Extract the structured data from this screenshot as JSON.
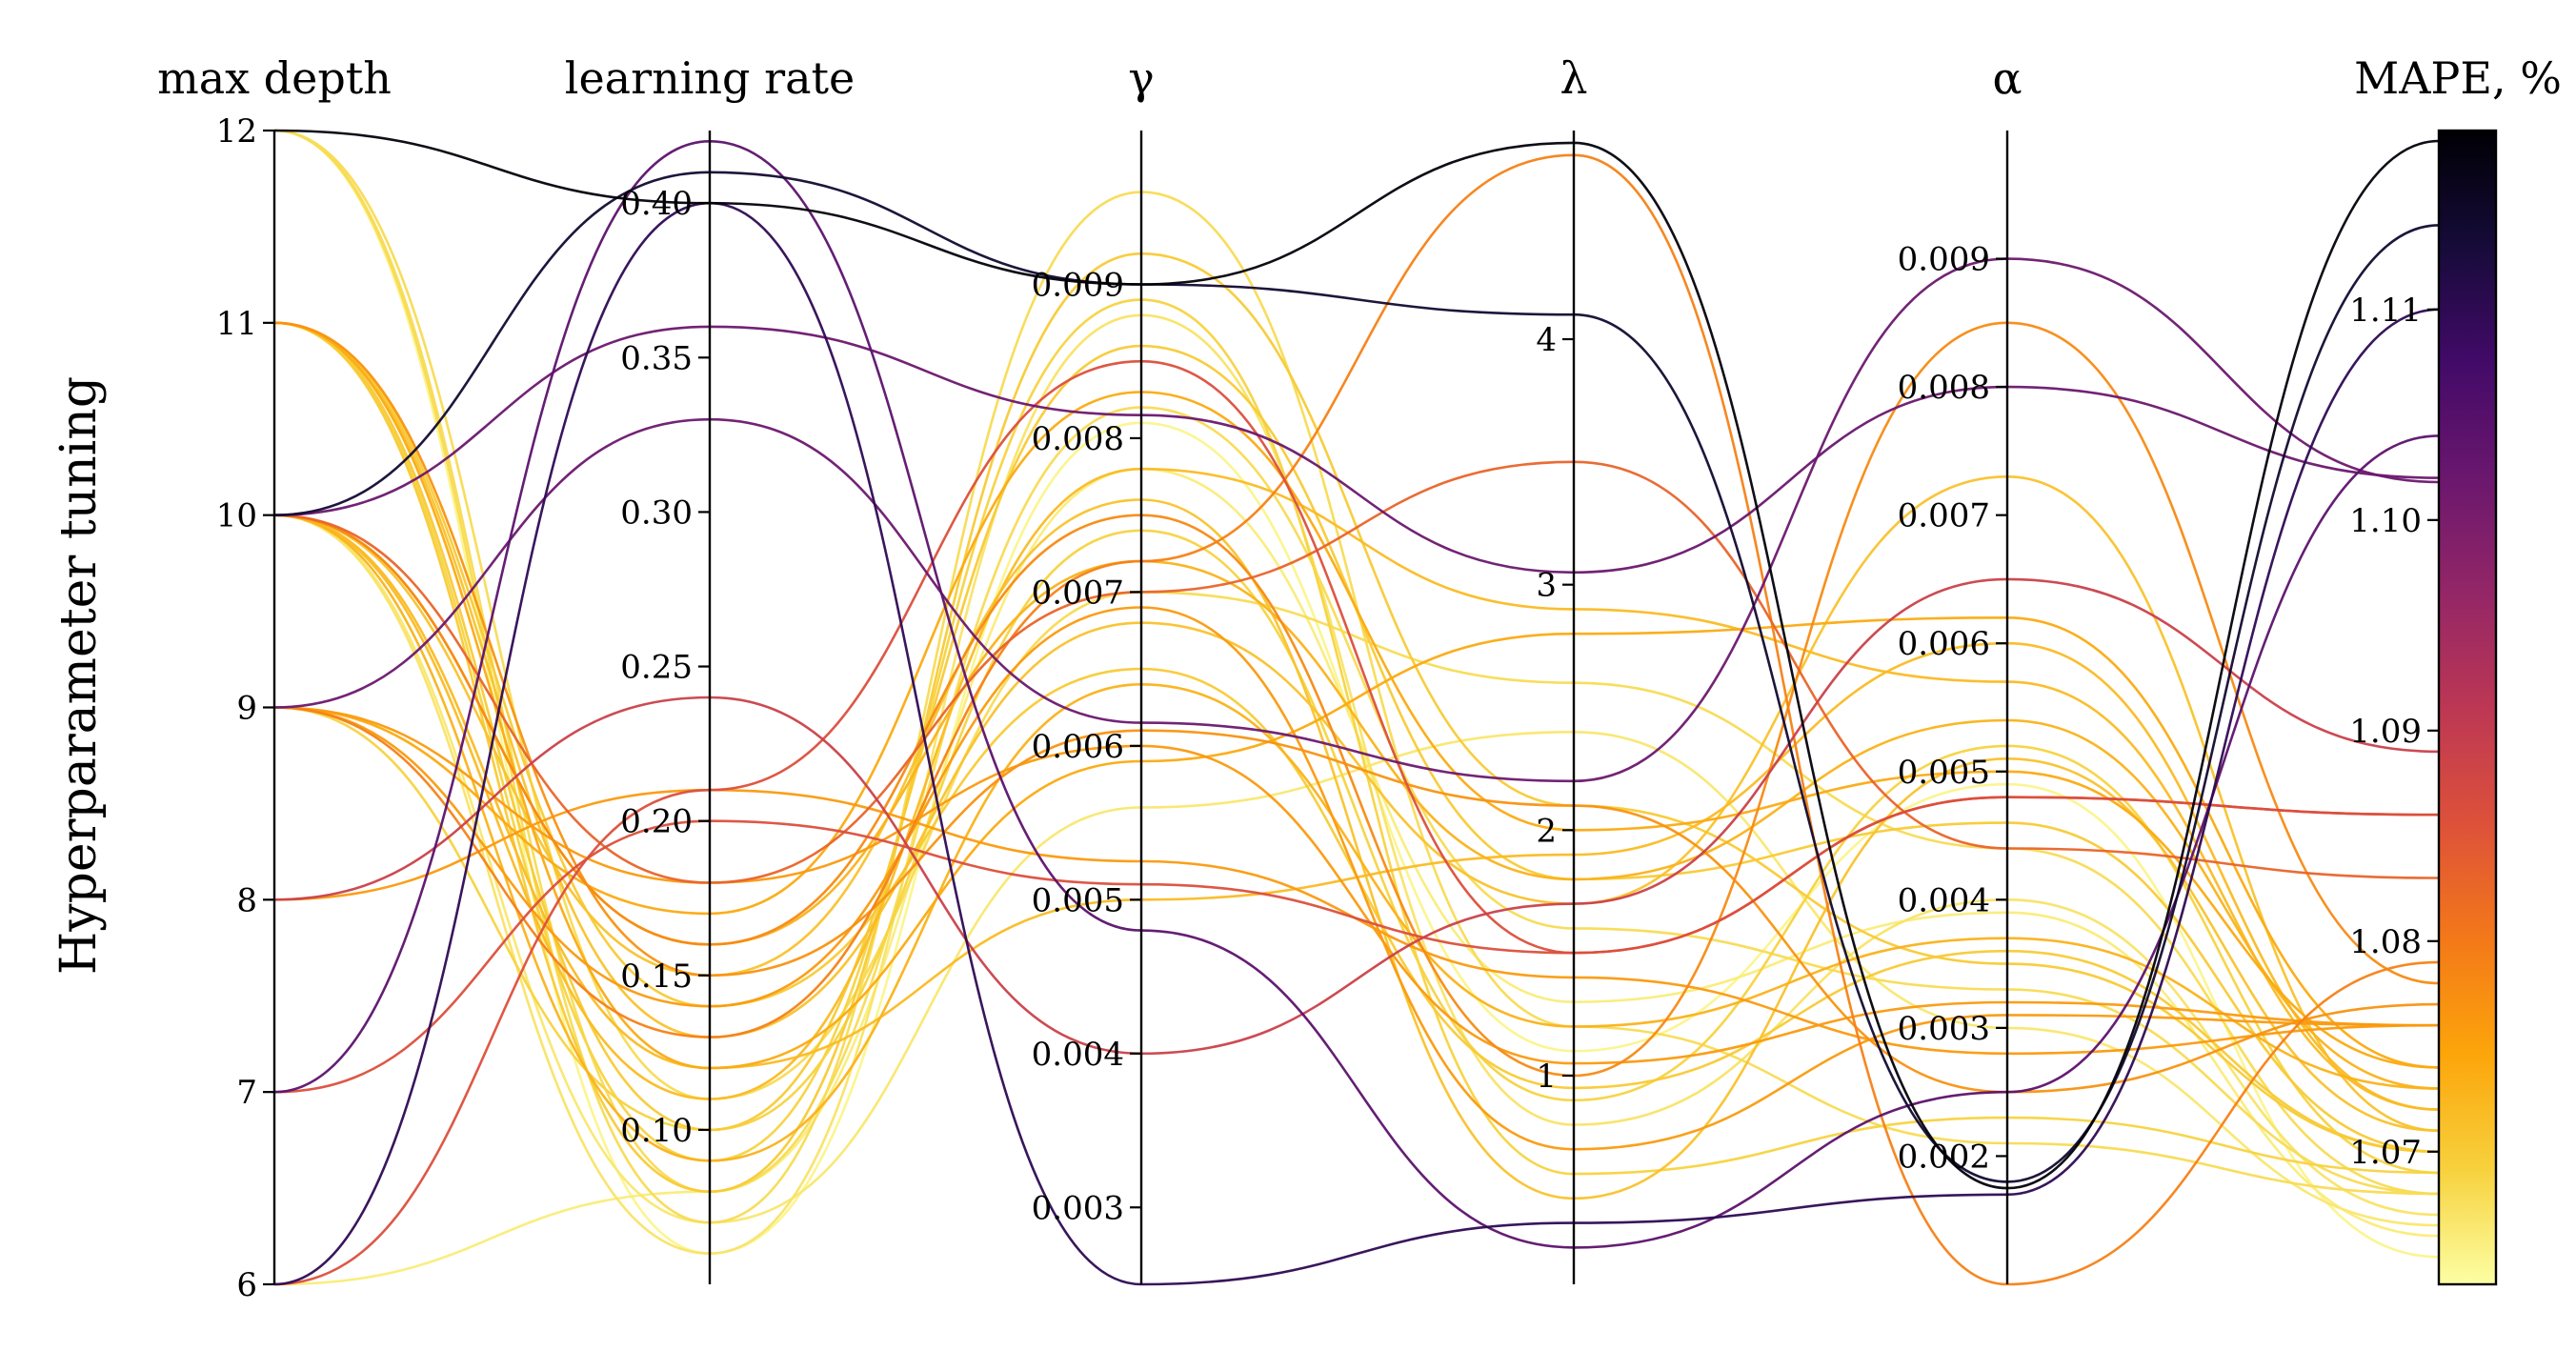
{
  "chart_data": {
    "type": "parallel_coordinates",
    "title": "",
    "ylabel": "Hyperparameter tuning",
    "axes": [
      {
        "key": "max_depth",
        "label": "max depth",
        "range": [
          6,
          12
        ],
        "ticks": [
          6,
          7,
          8,
          9,
          10,
          11,
          12
        ],
        "tick_labels": [
          "6",
          "7",
          "8",
          "9",
          "10",
          "11",
          "12"
        ],
        "tick_side": "left"
      },
      {
        "key": "learning_rate",
        "label": "learning rate",
        "range": [
          0.05,
          0.4235
        ],
        "ticks": [
          0.1,
          0.15,
          0.2,
          0.25,
          0.3,
          0.35,
          0.4
        ],
        "tick_labels": [
          "0.10",
          "0.15",
          "0.20",
          "0.25",
          "0.30",
          "0.35",
          "0.40"
        ],
        "tick_side": "left"
      },
      {
        "key": "gamma",
        "label": "γ",
        "range": [
          0.0025,
          0.01
        ],
        "ticks": [
          0.003,
          0.004,
          0.005,
          0.006,
          0.007,
          0.008,
          0.009
        ],
        "tick_labels": [
          "0.003",
          "0.004",
          "0.005",
          "0.006",
          "0.007",
          "0.008",
          "0.009"
        ],
        "tick_side": "left"
      },
      {
        "key": "lambda",
        "label": "λ",
        "range": [
          0.15,
          4.85
        ],
        "ticks": [
          1,
          2,
          3,
          4
        ],
        "tick_labels": [
          "1",
          "2",
          "3",
          "4"
        ],
        "tick_side": "left"
      },
      {
        "key": "alpha",
        "label": "α",
        "range": [
          0.001,
          0.01
        ],
        "ticks": [
          0.002,
          0.003,
          0.004,
          0.005,
          0.006,
          0.007,
          0.008,
          0.009
        ],
        "tick_labels": [
          "0.002",
          "0.003",
          "0.004",
          "0.005",
          "0.006",
          "0.007",
          "0.008",
          "0.009"
        ],
        "tick_side": "left"
      },
      {
        "key": "mape",
        "label": "MAPE, %",
        "range": [
          1.0637,
          1.1185
        ],
        "ticks": [
          1.07,
          1.08,
          1.09,
          1.1,
          1.11
        ],
        "tick_labels": [
          "1.07",
          "1.08",
          "1.09",
          "1.10",
          "1.11"
        ],
        "tick_side": "left",
        "colorbar": true
      }
    ],
    "colormap": "inferno_r",
    "colormap_stops": [
      "#fcffa4",
      "#f7d13d",
      "#fca50a",
      "#f37819",
      "#dd513a",
      "#bc3754",
      "#932667",
      "#6a176e",
      "#420a68",
      "#160b39",
      "#000004"
    ],
    "series": [
      {
        "values": [
          12,
          0.4,
          0.009,
          4.8,
          0.00175,
          1.118
        ]
      },
      {
        "values": [
          10,
          0.41,
          0.009,
          4.1,
          0.0018,
          1.114
        ]
      },
      {
        "values": [
          6,
          0.4,
          0.0025,
          0.4,
          0.0017,
          1.11
        ]
      },
      {
        "values": [
          10,
          0.36,
          0.00815,
          3.05,
          0.008,
          1.102
        ]
      },
      {
        "values": [
          9,
          0.33,
          0.00615,
          2.2,
          0.009,
          1.1018
        ]
      },
      {
        "values": [
          7,
          0.42,
          0.0048,
          0.3,
          0.0025,
          1.104
        ]
      },
      {
        "values": [
          8,
          0.24,
          0.004,
          1.7,
          0.0065,
          1.089
        ]
      },
      {
        "values": [
          7,
          0.2,
          0.0051,
          1.5,
          0.0048,
          1.086
        ]
      },
      {
        "values": [
          6,
          0.21,
          0.0085,
          1.5,
          0.0048,
          1.086
        ]
      },
      {
        "values": [
          10,
          0.18,
          0.007,
          3.5,
          0.0044,
          1.083
        ]
      },
      {
        "values": [
          11,
          0.15,
          0.0061,
          2.1,
          0.0025,
          1.077
        ]
      },
      {
        "values": [
          9,
          0.13,
          0.0072,
          4.75,
          0.001,
          1.079
        ]
      },
      {
        "values": [
          10,
          0.16,
          0.0075,
          1.0,
          0.0085,
          1.078
        ]
      },
      {
        "values": [
          11,
          0.12,
          0.0059,
          2.8,
          0.0062,
          1.074
        ]
      },
      {
        "values": [
          8,
          0.21,
          0.00525,
          1.4,
          0.0028,
          1.076
        ]
      },
      {
        "values": [
          9,
          0.14,
          0.0069,
          0.7,
          0.0031,
          1.076
        ]
      },
      {
        "values": [
          10,
          0.09,
          0.0064,
          1.2,
          0.0037,
          1.073
        ]
      },
      {
        "values": [
          10,
          0.11,
          0.0078,
          2.9,
          0.0057,
          1.072
        ]
      },
      {
        "values": [
          11,
          0.08,
          0.0092,
          2.1,
          0.0035,
          1.07
        ]
      },
      {
        "values": [
          12,
          0.07,
          0.0096,
          1.2,
          0.0021,
          1.068
        ]
      },
      {
        "values": [
          11,
          0.1,
          0.0086,
          1.8,
          0.0046,
          1.07
        ]
      },
      {
        "values": [
          10,
          0.06,
          0.0088,
          0.8,
          0.004,
          1.067
        ]
      },
      {
        "values": [
          12,
          0.08,
          0.0082,
          1.6,
          0.0033,
          1.068
        ]
      },
      {
        "values": [
          9,
          0.1,
          0.0074,
          0.9,
          0.0052,
          1.069
        ]
      },
      {
        "values": [
          11,
          0.13,
          0.0068,
          1.7,
          0.0073,
          1.071
        ]
      },
      {
        "values": [
          10,
          0.07,
          0.0056,
          2.4,
          0.003,
          1.0665
        ]
      },
      {
        "values": [
          6,
          0.08,
          0.0078,
          1.3,
          0.0039,
          1.066
        ]
      },
      {
        "values": [
          12,
          0.06,
          0.0081,
          1.1,
          0.0049,
          1.065
        ]
      },
      {
        "values": [
          10,
          0.12,
          0.005,
          1.9,
          0.006,
          1.072
        ]
      },
      {
        "values": [
          11,
          0.09,
          0.0089,
          0.6,
          0.0023,
          1.069
        ]
      },
      {
        "values": [
          9,
          0.17,
          0.0083,
          2.0,
          0.005,
          1.074
        ]
      },
      {
        "values": [
          10,
          0.15,
          0.0076,
          0.5,
          0.0051,
          1.071
        ]
      },
      {
        "values": [
          12,
          0.11,
          0.007,
          2.6,
          0.0044,
          1.068
        ]
      },
      {
        "values": [
          11,
          0.14,
          0.0065,
          0.95,
          0.0036,
          1.07
        ]
      },
      {
        "values": [
          10,
          0.16,
          0.0072,
          1.8,
          0.0054,
          1.073
        ]
      },
      {
        "values": [
          9,
          0.18,
          0.006,
          1.05,
          0.0032,
          1.076
        ]
      }
    ]
  }
}
